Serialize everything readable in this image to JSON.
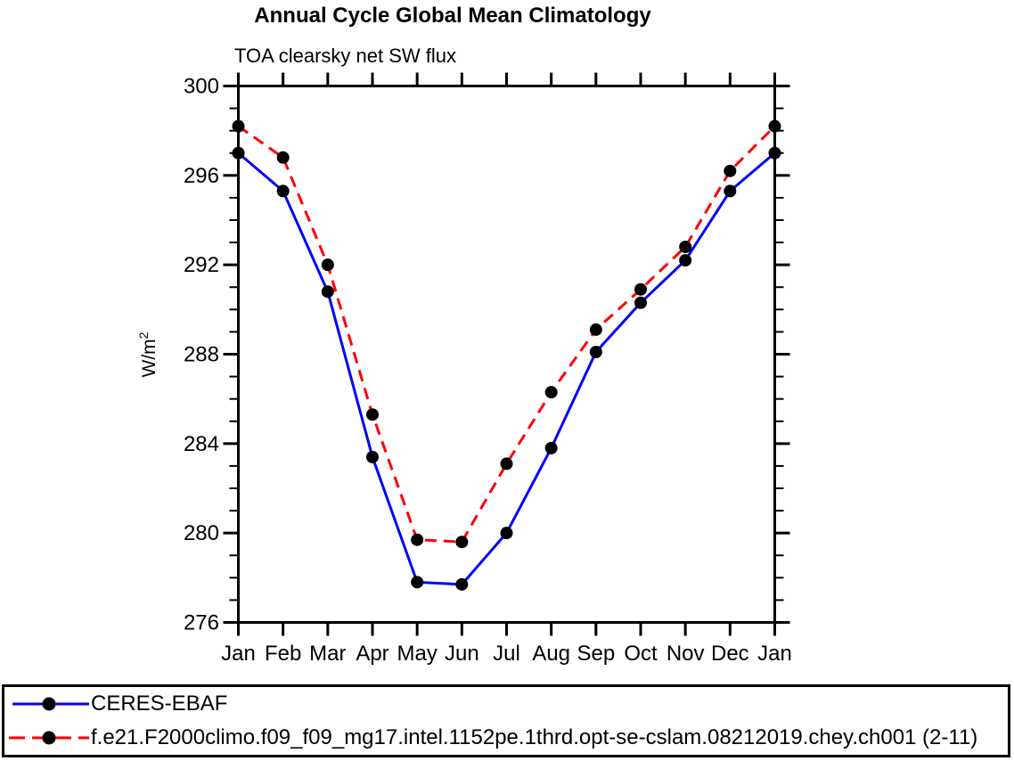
{
  "title": "Annual Cycle Global Mean Climatology",
  "subtitle": "TOA clearsky net SW flux",
  "legend": {
    "items": [
      {
        "label": "CERES-EBAF",
        "line_color": "#0000ff",
        "line_style": "solid",
        "marker": "filled-circle",
        "marker_color": "#000000"
      },
      {
        "label": "f.e21.F2000climo.f09_f09_mg17.intel.1152pe.1thrd.opt-se-cslam.08212019.chey.ch001 (2-11)",
        "line_color": "#ff0000",
        "line_style": "dashed",
        "marker": "filled-circle",
        "marker_color": "#000000"
      }
    ]
  },
  "chart_data": {
    "type": "line",
    "title": "Annual Cycle Global Mean Climatology",
    "subtitle": "TOA clearsky net SW flux",
    "xlabel": "",
    "ylabel": "W/m2",
    "ylabel_base": "W/m",
    "ylabel_sup": "2",
    "categories": [
      "Jan",
      "Feb",
      "Mar",
      "Apr",
      "May",
      "Jun",
      "Jul",
      "Aug",
      "Sep",
      "Oct",
      "Nov",
      "Dec",
      "Jan"
    ],
    "series": [
      {
        "name": "CERES-EBAF",
        "color": "#0000ff",
        "style": "solid",
        "marker": "filled-circle",
        "marker_color": "#000000",
        "values": [
          297.0,
          295.3,
          290.8,
          283.4,
          277.8,
          277.7,
          280.0,
          283.8,
          288.1,
          290.3,
          292.2,
          295.3,
          297.0
        ]
      },
      {
        "name": "f.e21.F2000climo.f09_f09_mg17.intel.1152pe.1thrd.opt-se-cslam.08212019.chey.ch001 (2-11)",
        "color": "#ff0000",
        "style": "dashed",
        "marker": "filled-circle",
        "marker_color": "#000000",
        "values": [
          298.2,
          296.8,
          292.0,
          285.3,
          279.7,
          279.6,
          283.1,
          286.3,
          289.1,
          290.9,
          292.8,
          296.2,
          298.2
        ]
      }
    ],
    "ylim": [
      276,
      300
    ],
    "yticks_major": [
      276,
      280,
      284,
      288,
      292,
      296,
      300
    ],
    "ytick_minor_step": 1,
    "grid": false,
    "legend_position": "bottom-box",
    "frame_color": "#000000"
  }
}
